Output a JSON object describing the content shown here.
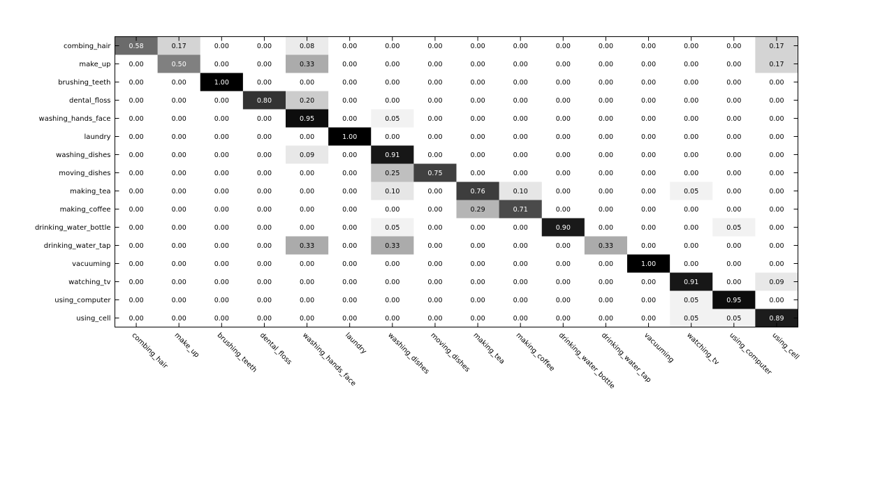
{
  "chart_data": {
    "type": "heatmap",
    "title": "",
    "xlabel": "",
    "ylabel": "",
    "colormap": "gray-inverted",
    "value_range": [
      0,
      1
    ],
    "grid": false,
    "rows": [
      "combing_hair",
      "make_up",
      "brushing_teeth",
      "dental_floss",
      "washing_hands_face",
      "laundry",
      "washing_dishes",
      "moving_dishes",
      "making_tea",
      "making_coffee",
      "drinking_water_bottle",
      "drinking_water_tap",
      "vacuuming",
      "watching_tv",
      "using_computer",
      "using_cell"
    ],
    "cols": [
      "combing_hair",
      "make_up",
      "brushing_teeth",
      "dental_floss",
      "washing_hands_face",
      "laundry",
      "washing_dishes",
      "moving_dishes",
      "making_tea",
      "making_coffee",
      "drinking_water_bottle",
      "drinking_water_tap",
      "vacuuming",
      "watching_tv",
      "using_computer",
      "using_cell"
    ],
    "values": [
      [
        0.58,
        0.17,
        0.0,
        0.0,
        0.08,
        0.0,
        0.0,
        0.0,
        0.0,
        0.0,
        0.0,
        0.0,
        0.0,
        0.0,
        0.0,
        0.17
      ],
      [
        0.0,
        0.5,
        0.0,
        0.0,
        0.33,
        0.0,
        0.0,
        0.0,
        0.0,
        0.0,
        0.0,
        0.0,
        0.0,
        0.0,
        0.0,
        0.17
      ],
      [
        0.0,
        0.0,
        1.0,
        0.0,
        0.0,
        0.0,
        0.0,
        0.0,
        0.0,
        0.0,
        0.0,
        0.0,
        0.0,
        0.0,
        0.0,
        0.0
      ],
      [
        0.0,
        0.0,
        0.0,
        0.8,
        0.2,
        0.0,
        0.0,
        0.0,
        0.0,
        0.0,
        0.0,
        0.0,
        0.0,
        0.0,
        0.0,
        0.0
      ],
      [
        0.0,
        0.0,
        0.0,
        0.0,
        0.95,
        0.0,
        0.05,
        0.0,
        0.0,
        0.0,
        0.0,
        0.0,
        0.0,
        0.0,
        0.0,
        0.0
      ],
      [
        0.0,
        0.0,
        0.0,
        0.0,
        0.0,
        1.0,
        0.0,
        0.0,
        0.0,
        0.0,
        0.0,
        0.0,
        0.0,
        0.0,
        0.0,
        0.0
      ],
      [
        0.0,
        0.0,
        0.0,
        0.0,
        0.09,
        0.0,
        0.91,
        0.0,
        0.0,
        0.0,
        0.0,
        0.0,
        0.0,
        0.0,
        0.0,
        0.0
      ],
      [
        0.0,
        0.0,
        0.0,
        0.0,
        0.0,
        0.0,
        0.25,
        0.75,
        0.0,
        0.0,
        0.0,
        0.0,
        0.0,
        0.0,
        0.0,
        0.0
      ],
      [
        0.0,
        0.0,
        0.0,
        0.0,
        0.0,
        0.0,
        0.1,
        0.0,
        0.76,
        0.1,
        0.0,
        0.0,
        0.0,
        0.05,
        0.0,
        0.0
      ],
      [
        0.0,
        0.0,
        0.0,
        0.0,
        0.0,
        0.0,
        0.0,
        0.0,
        0.29,
        0.71,
        0.0,
        0.0,
        0.0,
        0.0,
        0.0,
        0.0
      ],
      [
        0.0,
        0.0,
        0.0,
        0.0,
        0.0,
        0.0,
        0.05,
        0.0,
        0.0,
        0.0,
        0.9,
        0.0,
        0.0,
        0.0,
        0.05,
        0.0
      ],
      [
        0.0,
        0.0,
        0.0,
        0.0,
        0.33,
        0.0,
        0.33,
        0.0,
        0.0,
        0.0,
        0.0,
        0.33,
        0.0,
        0.0,
        0.0,
        0.0
      ],
      [
        0.0,
        0.0,
        0.0,
        0.0,
        0.0,
        0.0,
        0.0,
        0.0,
        0.0,
        0.0,
        0.0,
        0.0,
        1.0,
        0.0,
        0.0,
        0.0
      ],
      [
        0.0,
        0.0,
        0.0,
        0.0,
        0.0,
        0.0,
        0.0,
        0.0,
        0.0,
        0.0,
        0.0,
        0.0,
        0.0,
        0.91,
        0.0,
        0.09
      ],
      [
        0.0,
        0.0,
        0.0,
        0.0,
        0.0,
        0.0,
        0.0,
        0.0,
        0.0,
        0.0,
        0.0,
        0.0,
        0.0,
        0.05,
        0.95,
        0.0
      ],
      [
        0.0,
        0.0,
        0.0,
        0.0,
        0.0,
        0.0,
        0.0,
        0.0,
        0.0,
        0.0,
        0.0,
        0.0,
        0.0,
        0.05,
        0.05,
        0.89
      ]
    ]
  }
}
